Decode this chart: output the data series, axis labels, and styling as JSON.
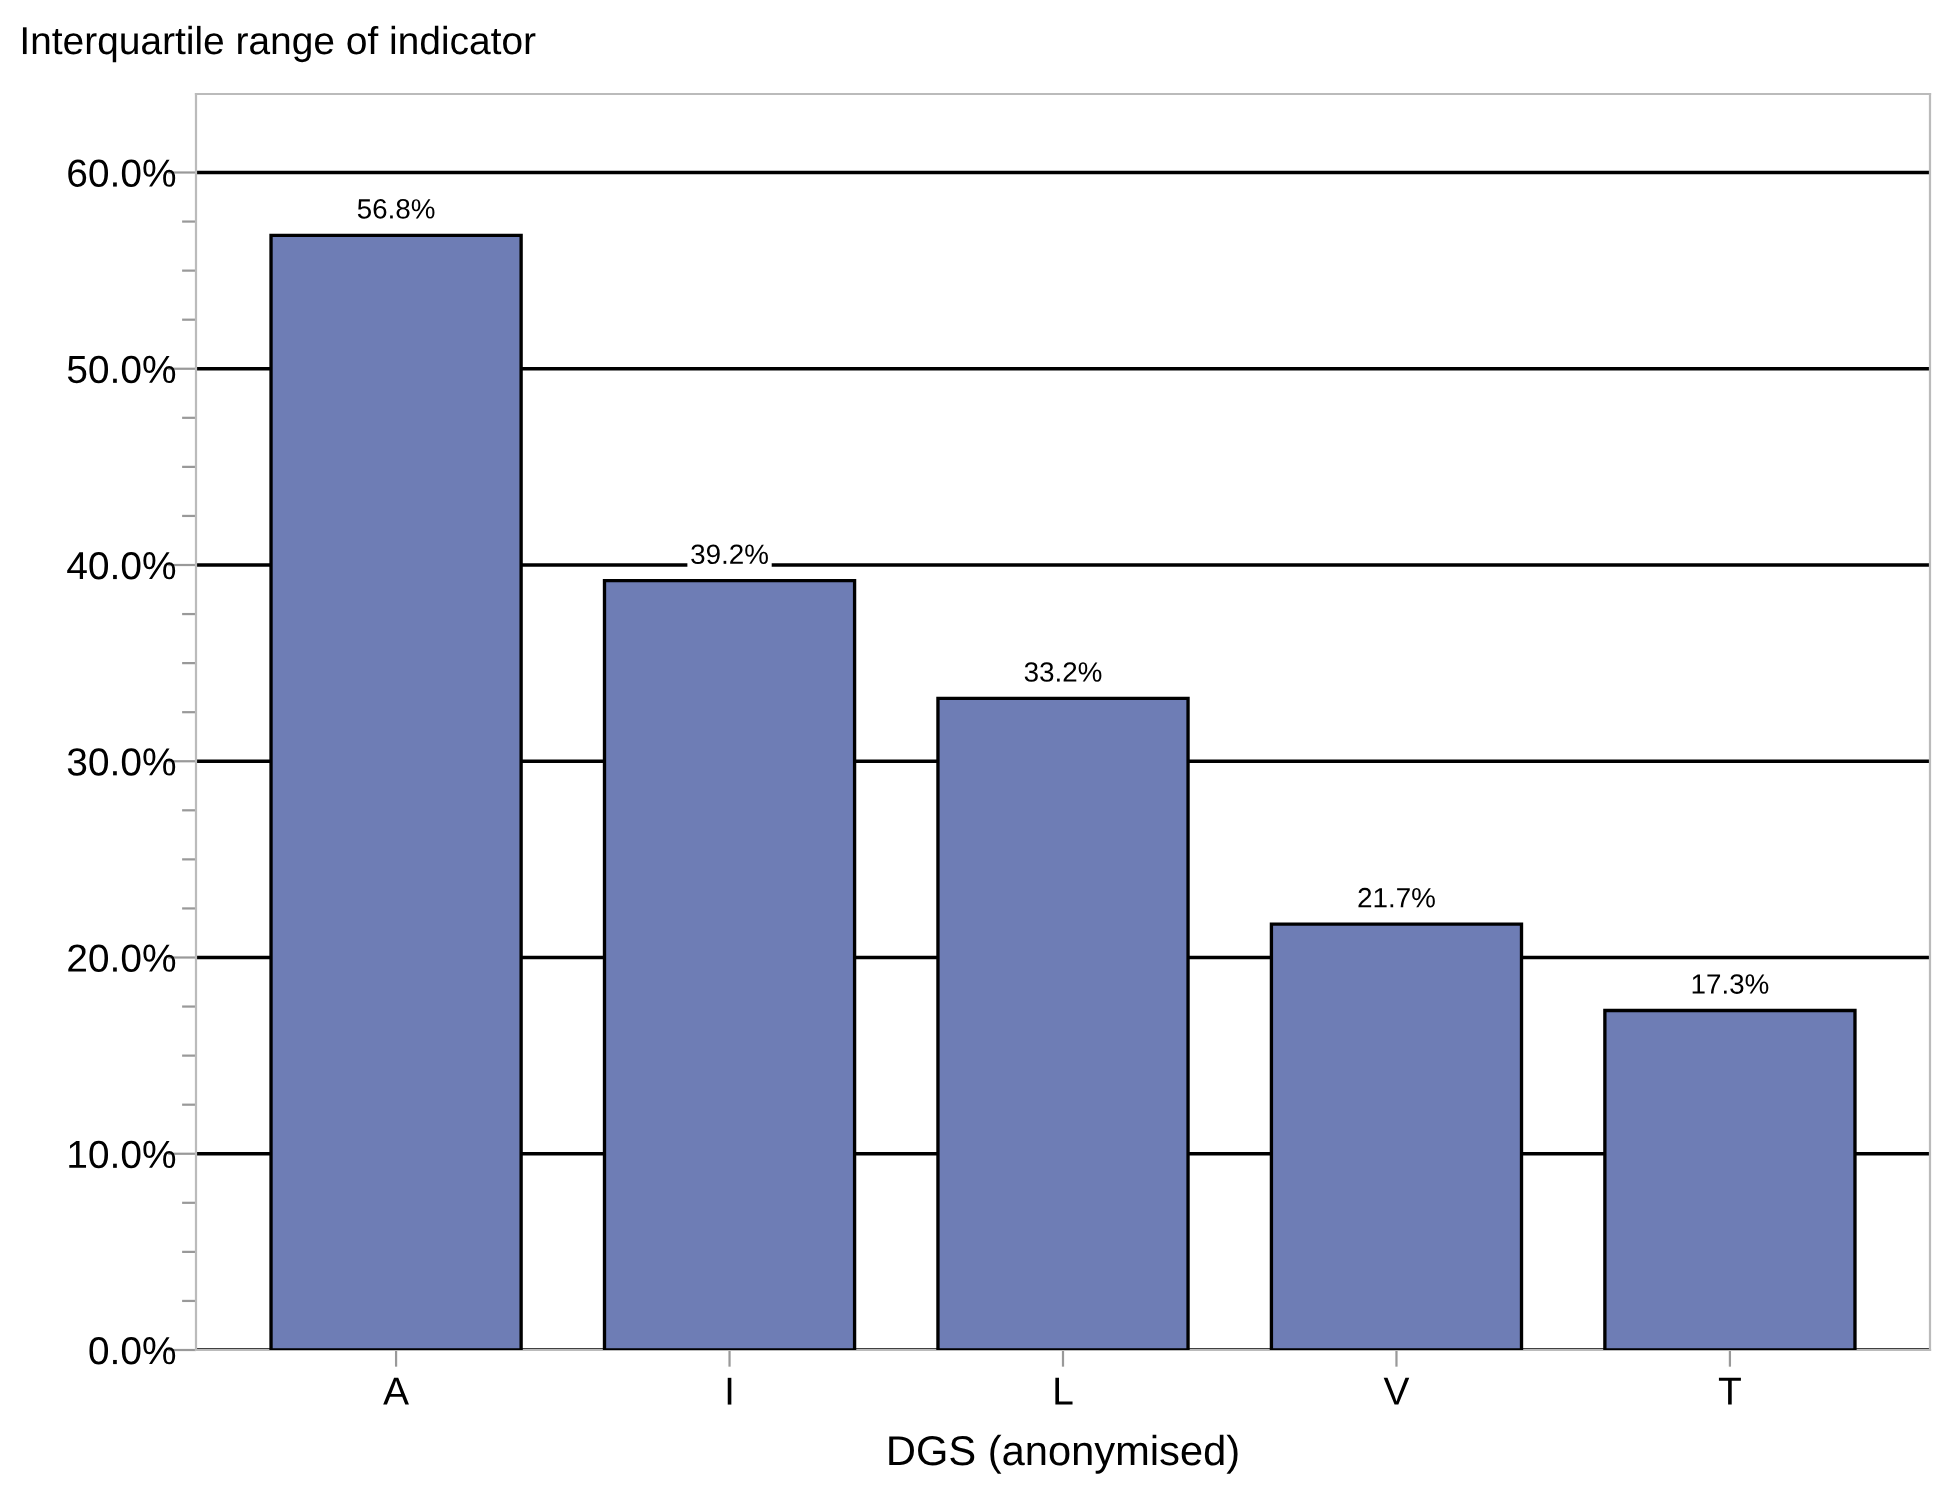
{
  "chart_data": {
    "type": "bar",
    "ylabel": "Interquartile range of indicator",
    "xlabel": "DGS (anonymised)",
    "categories": [
      "A",
      "I",
      "L",
      "V",
      "T"
    ],
    "values": [
      56.8,
      39.2,
      33.2,
      21.7,
      17.3
    ],
    "value_labels": [
      "56.8%",
      "39.2%",
      "33.2%",
      "21.7%",
      "17.3%"
    ],
    "color": "#6e7db5",
    "ylim": [
      0,
      64
    ],
    "yticks": [
      {
        "value": 0,
        "label": "0.0%"
      },
      {
        "value": 2.5,
        "label": null
      },
      {
        "value": 5,
        "label": null
      },
      {
        "value": 7.5,
        "label": null
      },
      {
        "value": 10,
        "label": "10.0%"
      },
      {
        "value": 12.5,
        "label": null
      },
      {
        "value": 15,
        "label": null
      },
      {
        "value": 17.5,
        "label": null
      },
      {
        "value": 20,
        "label": "20.0%"
      },
      {
        "value": 22.5,
        "label": null
      },
      {
        "value": 25,
        "label": null
      },
      {
        "value": 27.5,
        "label": null
      },
      {
        "value": 30,
        "label": "30.0%"
      },
      {
        "value": 32.5,
        "label": null
      },
      {
        "value": 35,
        "label": null
      },
      {
        "value": 37.5,
        "label": null
      },
      {
        "value": 40,
        "label": "40.0%"
      },
      {
        "value": 42.5,
        "label": null
      },
      {
        "value": 45,
        "label": null
      },
      {
        "value": 47.5,
        "label": null
      },
      {
        "value": 50,
        "label": "50.0%"
      },
      {
        "value": 52.5,
        "label": null
      },
      {
        "value": 55,
        "label": null
      },
      {
        "value": 57.5,
        "label": null
      },
      {
        "value": 60,
        "label": "60.0%"
      }
    ],
    "grid": "y",
    "legend": false
  }
}
